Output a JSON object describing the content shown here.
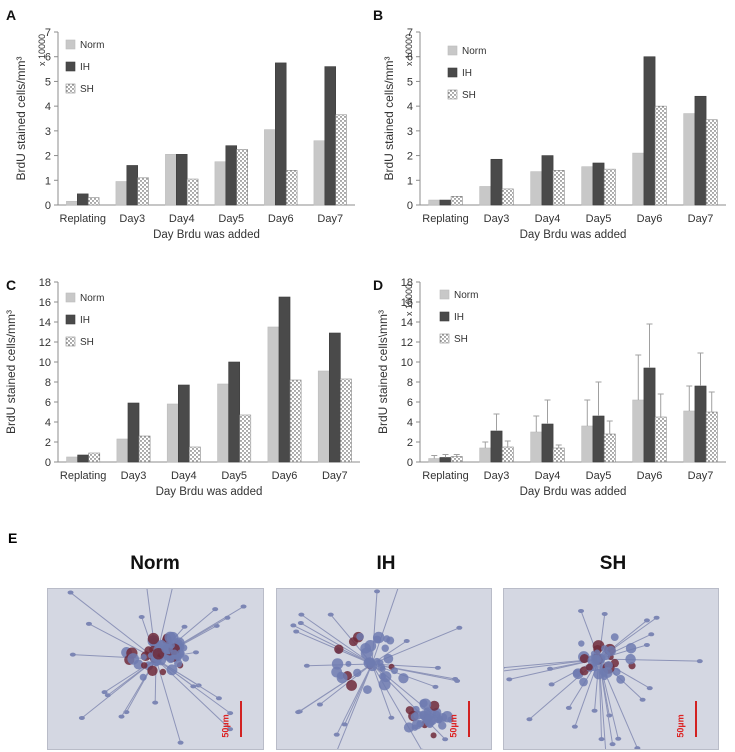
{
  "panel_letters": [
    "A",
    "B",
    "C",
    "D",
    "E"
  ],
  "colors": {
    "norm": "#c8c8c8",
    "ih": "#4a4a4a",
    "sh_dots": "#333333",
    "axis": "#8c8c8c",
    "scale_red": "#d22222"
  },
  "chart_data": [
    {
      "id": "A",
      "type": "bar",
      "categories": [
        "Replating",
        "Day3",
        "Day4",
        "Day5",
        "Day6",
        "Day7"
      ],
      "series": [
        {
          "name": "Norm",
          "values": [
            0.15,
            0.95,
            2.05,
            1.75,
            3.05,
            2.6
          ]
        },
        {
          "name": "IH",
          "values": [
            0.45,
            1.6,
            2.05,
            2.4,
            5.75,
            5.6
          ]
        },
        {
          "name": "SH",
          "values": [
            0.3,
            1.1,
            1.05,
            2.25,
            1.4,
            3.65
          ]
        }
      ],
      "xlabel": "Day Brdu was added",
      "ylabel": "BrdU stained cells/mm³",
      "scale_note": "x 10000",
      "ylim": [
        0,
        7
      ],
      "yticks": [
        "0",
        "1",
        "2",
        "3",
        "4",
        "5",
        "6",
        "7"
      ]
    },
    {
      "id": "B",
      "type": "bar",
      "categories": [
        "Replating",
        "Day3",
        "Day4",
        "Day5",
        "Day6",
        "Day7"
      ],
      "series": [
        {
          "name": "Norm",
          "values": [
            0.2,
            0.75,
            1.35,
            1.55,
            2.1,
            3.7
          ]
        },
        {
          "name": "IH",
          "values": [
            0.2,
            1.85,
            2.0,
            1.7,
            6.0,
            4.4
          ]
        },
        {
          "name": "SH",
          "values": [
            0.35,
            0.65,
            1.4,
            1.45,
            4.0,
            3.45
          ]
        }
      ],
      "xlabel": "Day Brdu was added",
      "ylabel": "BrdU stained cells/mm³",
      "scale_note": "x 10000",
      "ylim": [
        0,
        7
      ],
      "yticks": [
        "0",
        "1",
        "2",
        "3",
        "4",
        "5",
        "6",
        "7"
      ]
    },
    {
      "id": "C",
      "type": "bar",
      "categories": [
        "Replating",
        "Day3",
        "Day4",
        "Day5",
        "Day6",
        "Day7"
      ],
      "series": [
        {
          "name": "Norm",
          "values": [
            0.5,
            2.3,
            5.8,
            7.8,
            13.5,
            9.1
          ]
        },
        {
          "name": "IH",
          "values": [
            0.7,
            5.9,
            7.7,
            10.0,
            16.5,
            12.9
          ]
        },
        {
          "name": "SH",
          "values": [
            0.9,
            2.6,
            1.5,
            4.7,
            8.2,
            8.3
          ]
        }
      ],
      "xlabel": "Day Brdu was added",
      "ylabel": "BrdU stained cells/mm³",
      "scale_note": "",
      "ylim": [
        0,
        18
      ],
      "yticks": [
        "0",
        "2",
        "4",
        "6",
        "8",
        "10",
        "12",
        "14",
        "16",
        "18"
      ]
    },
    {
      "id": "D",
      "type": "bar",
      "categories": [
        "Replating",
        "Day3",
        "Day4",
        "Day5",
        "Day6",
        "Day7"
      ],
      "series": [
        {
          "name": "Norm",
          "values": [
            0.35,
            1.4,
            3.0,
            3.6,
            6.2,
            5.1
          ],
          "err": [
            0.3,
            0.6,
            1.6,
            2.6,
            4.5,
            2.5
          ]
        },
        {
          "name": "IH",
          "values": [
            0.45,
            3.1,
            3.8,
            4.6,
            9.4,
            7.6
          ],
          "err": [
            0.3,
            1.7,
            2.4,
            3.4,
            4.4,
            3.3
          ]
        },
        {
          "name": "SH",
          "values": [
            0.55,
            1.5,
            1.4,
            2.8,
            4.5,
            5.0
          ],
          "err": [
            0.2,
            0.6,
            0.3,
            1.3,
            2.3,
            2.0
          ]
        }
      ],
      "xlabel": "Day Brdu was added",
      "ylabel": "BrdU stained cells\\mm³",
      "scale_note": "x 10000",
      "ylim": [
        0,
        18
      ],
      "yticks": [
        "0",
        "2",
        "4",
        "6",
        "8",
        "10",
        "12",
        "14",
        "16",
        "18"
      ]
    }
  ],
  "micrographs": [
    {
      "title": "Norm",
      "scale_label": "50µm"
    },
    {
      "title": "IH",
      "scale_label": "50µm"
    },
    {
      "title": "SH",
      "scale_label": "50µm"
    }
  ]
}
